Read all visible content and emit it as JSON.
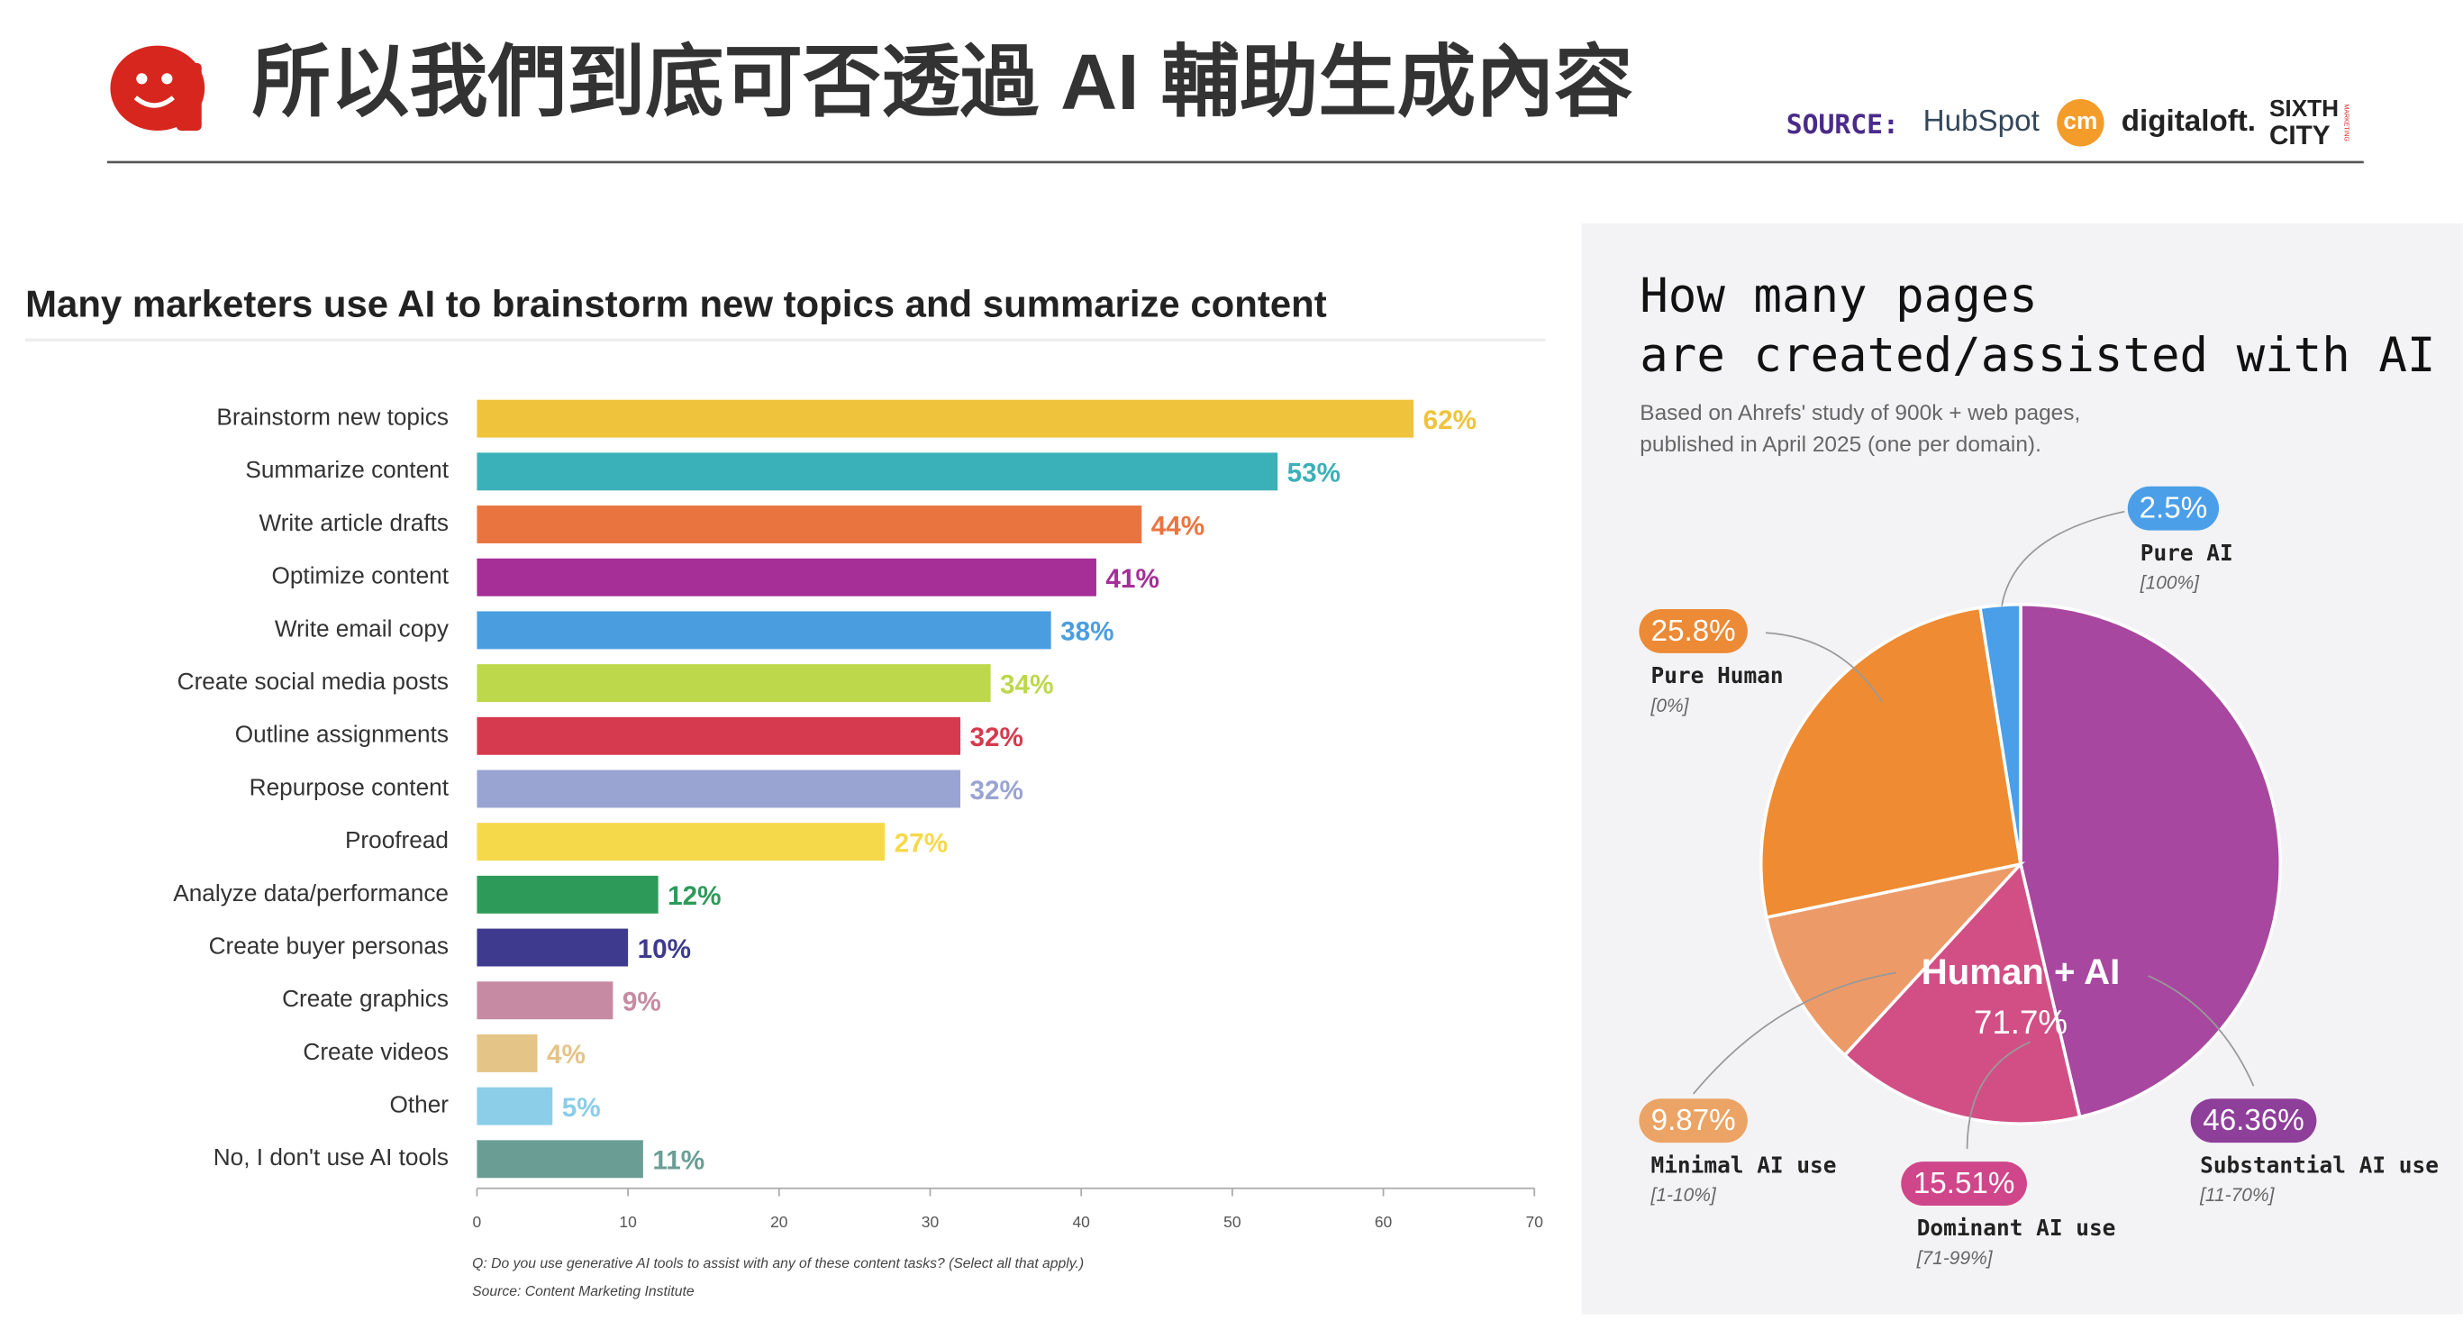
{
  "header": {
    "title": "所以我們到底可否透過 AI 輔助生成內容",
    "source_label": "SOURCE:",
    "sources": [
      "HubSpot",
      "cm",
      "digitaloft.",
      "SIXTH",
      "CITY",
      "MARKETING"
    ]
  },
  "chart_data": [
    {
      "type": "bar",
      "orientation": "horizontal",
      "title": "Many marketers use AI to brainstorm new topics and summarize content",
      "categories": [
        "Brainstorm new topics",
        "Summarize content",
        "Write article drafts",
        "Optimize content",
        "Write email copy",
        "Create social media posts",
        "Outline assignments",
        "Repurpose content",
        "Proofread",
        "Analyze data/performance",
        "Create buyer personas",
        "Create graphics",
        "Create videos",
        "Other",
        "No, I don't use AI tools"
      ],
      "values": [
        62,
        53,
        44,
        41,
        38,
        34,
        32,
        32,
        27,
        12,
        10,
        9,
        4,
        5,
        11
      ],
      "value_labels": [
        "62%",
        "53%",
        "44%",
        "41%",
        "38%",
        "34%",
        "32%",
        "32%",
        "27%",
        "12%",
        "10%",
        "9%",
        "4%",
        "5%",
        "11%"
      ],
      "colors": [
        "#f0c33c",
        "#3ab0b8",
        "#ea7440",
        "#a52f96",
        "#4a9ee0",
        "#bdd84a",
        "#d63a4e",
        "#9aa4d2",
        "#f6d94a",
        "#2e9a5a",
        "#3e3a8e",
        "#c68aa2",
        "#e5c488",
        "#8ccde8",
        "#6a9e94"
      ],
      "xlim": [
        0,
        70
      ],
      "xticks": [
        0,
        10,
        20,
        30,
        40,
        50,
        60,
        70
      ],
      "grid": false,
      "notes": [
        "Q: Do you use generative AI tools to assist with any of these content tasks? (Select all that apply.)",
        "Source: Content Marketing Institute"
      ]
    },
    {
      "type": "pie",
      "title": [
        "How many pages",
        "are created/assisted with AI"
      ],
      "subtitle": [
        "Based on Ahrefs' study of 900k + web pages,",
        "published in April 2025 (one per domain)."
      ],
      "categories": [
        "Substantial AI use",
        "Dominant AI use",
        "Minimal AI use",
        "Pure Human",
        "Pure AI"
      ],
      "ranges": [
        "[11-70%]",
        "[71-99%]",
        "[1-10%]",
        "[0%]",
        "[100%]"
      ],
      "values": [
        46.36,
        15.51,
        9.87,
        25.8,
        2.5
      ],
      "value_labels": [
        "46.36%",
        "15.51%",
        "9.87%",
        "25.8%",
        "2.5%"
      ],
      "colors": [
        "#a8479f",
        "#d24f86",
        "#ec9a68",
        "#ef8b32",
        "#4b9fe8"
      ],
      "label_colors": [
        "#8e3f9a",
        "#d0468a",
        "#eba466",
        "#ec8a35",
        "#4b9fe8"
      ],
      "center_label": "Human + AI",
      "center_value": 71.7,
      "center_value_label": "71.7%"
    }
  ]
}
